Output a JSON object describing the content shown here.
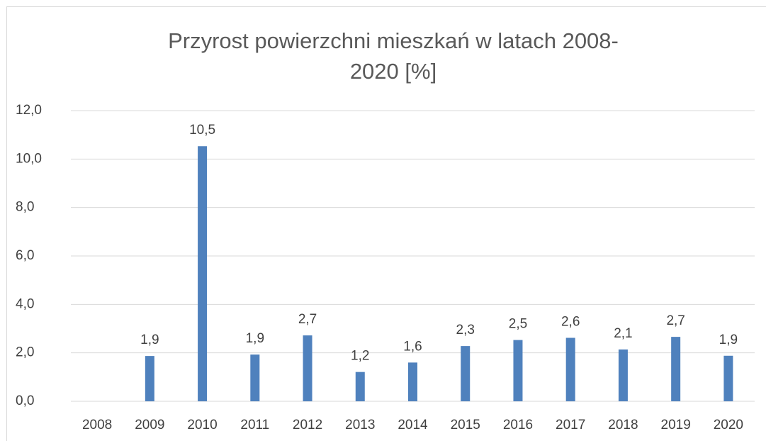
{
  "chart_data": {
    "type": "bar",
    "title": "Przyrost powierzchni mieszkań w latach 2008-2020 [%]",
    "categories": [
      "2008",
      "2009",
      "2010",
      "2011",
      "2012",
      "2013",
      "2014",
      "2015",
      "2016",
      "2017",
      "2018",
      "2019",
      "2020"
    ],
    "values": [
      null,
      1.87,
      10.53,
      1.93,
      2.72,
      1.21,
      1.6,
      2.28,
      2.53,
      2.62,
      2.14,
      2.66,
      1.88
    ],
    "value_labels": [
      null,
      "1,9",
      "10,5",
      "1,9",
      "2,7",
      "1,2",
      "1,6",
      "2,3",
      "2,5",
      "2,6",
      "2,1",
      "2,7",
      "1,9"
    ],
    "color": "#4f81bd",
    "ylim": [
      0,
      12
    ],
    "yticks": [
      {
        "value": 0,
        "label": "0,0"
      },
      {
        "value": 2,
        "label": "2,0"
      },
      {
        "value": 4,
        "label": "4,0"
      },
      {
        "value": 6,
        "label": "6,0"
      },
      {
        "value": 8,
        "label": "8,0"
      },
      {
        "value": 10,
        "label": "10,0"
      },
      {
        "value": 12,
        "label": "12,0"
      }
    ],
    "grid": true
  }
}
